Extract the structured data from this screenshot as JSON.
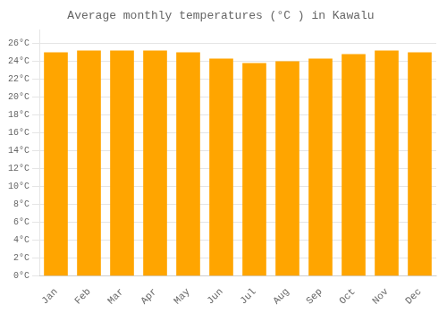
{
  "chart_data": {
    "type": "bar",
    "title": "Average monthly temperatures (°C ) in Kawalu",
    "categories": [
      "Jan",
      "Feb",
      "Mar",
      "Apr",
      "May",
      "Jun",
      "Jul",
      "Aug",
      "Sep",
      "Oct",
      "Nov",
      "Dec"
    ],
    "values": [
      25.0,
      25.2,
      25.2,
      25.2,
      25.0,
      24.3,
      23.8,
      24.0,
      24.3,
      24.8,
      25.2,
      25.0
    ],
    "color": "#FFA500",
    "ylim": [
      0,
      27.5
    ],
    "yticks": [
      {
        "value": 0,
        "label": "0°C"
      },
      {
        "value": 2,
        "label": "2°C"
      },
      {
        "value": 4,
        "label": "4°C"
      },
      {
        "value": 6,
        "label": "6°C"
      },
      {
        "value": 8,
        "label": "8°C"
      },
      {
        "value": 10,
        "label": "10°C"
      },
      {
        "value": 12,
        "label": "12°C"
      },
      {
        "value": 14,
        "label": "14°C"
      },
      {
        "value": 16,
        "label": "16°C"
      },
      {
        "value": 18,
        "label": "18°C"
      },
      {
        "value": 20,
        "label": "20°C"
      },
      {
        "value": 22,
        "label": "22°C"
      },
      {
        "value": 24,
        "label": "24°C"
      },
      {
        "value": 26,
        "label": "26°C"
      }
    ],
    "grid": true
  }
}
